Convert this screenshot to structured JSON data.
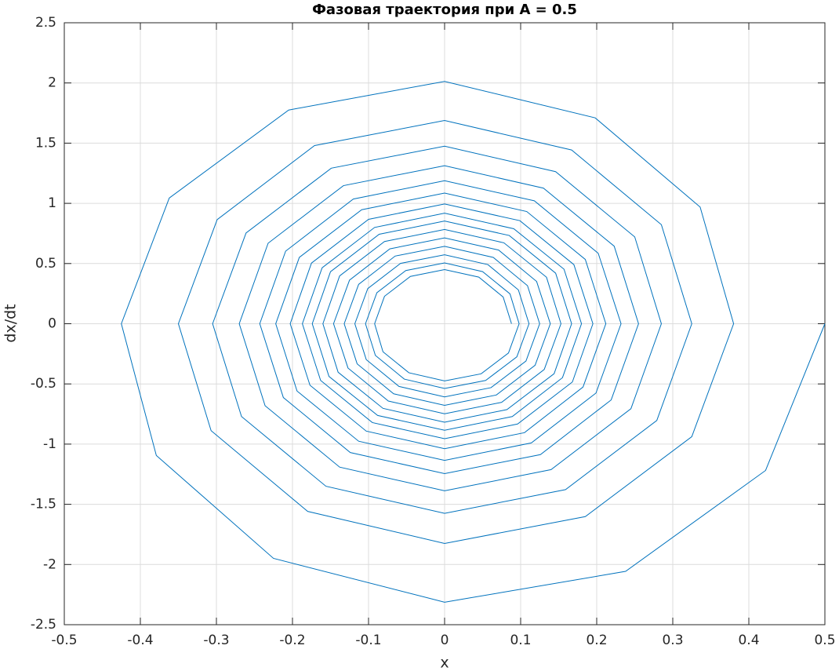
{
  "chart_data": {
    "type": "line",
    "title": "Фазовая траектория при A = 0.5",
    "xlabel": "x",
    "ylabel": "dx/dt",
    "color": "#0072bd",
    "grid": true,
    "xlim": [
      -0.5,
      0.5
    ],
    "xticks": [
      -0.5,
      -0.4,
      -0.3,
      -0.2,
      -0.1,
      0,
      0.1,
      0.2,
      0.3,
      0.4,
      0.5
    ],
    "ylim": [
      -2.5,
      2.5
    ],
    "yticks": [
      -2.5,
      -2,
      -1.5,
      -1,
      -0.5,
      0,
      0.5,
      1,
      1.5,
      2,
      2.5
    ],
    "x": [
      0.5,
      0.422,
      0.238,
      0,
      -0.225,
      -0.379,
      -0.425,
      -0.362,
      -0.205,
      0,
      0.198,
      0.336,
      0.38,
      0.325,
      0.185,
      0,
      -0.18,
      -0.307,
      -0.35,
      -0.299,
      -0.171,
      0,
      0.167,
      0.285,
      0.325,
      0.279,
      0.159,
      0,
      -0.156,
      -0.267,
      -0.305,
      -0.261,
      -0.149,
      0,
      0.146,
      0.25,
      0.285,
      0.245,
      0.14,
      0,
      -0.138,
      -0.236,
      -0.27,
      -0.232,
      -0.133,
      0,
      0.13,
      0.223,
      0.255,
      0.219,
      0.126,
      0,
      -0.124,
      -0.212,
      -0.243,
      -0.209,
      -0.12,
      0,
      0.118,
      0.202,
      0.232,
      0.199,
      0.114,
      0,
      -0.113,
      -0.194,
      -0.222,
      -0.191,
      -0.109,
      0,
      0.108,
      0.185,
      0.212,
      0.182,
      0.105,
      0,
      -0.103,
      -0.177,
      -0.203,
      -0.175,
      -0.1,
      0,
      0.099,
      0.17,
      0.195,
      0.168,
      0.096,
      0,
      -0.095,
      -0.163,
      -0.187,
      -0.161,
      -0.092,
      0,
      0.091,
      0.157,
      0.18,
      0.155,
      0.089,
      0,
      -0.088,
      -0.152,
      -0.174,
      -0.15,
      -0.086,
      0,
      0.085,
      0.146,
      0.167,
      0.144,
      0.082,
      0,
      -0.081,
      -0.14,
      -0.16,
      -0.138,
      -0.079,
      0,
      0.078,
      0.134,
      0.153,
      0.131,
      0.075,
      0,
      -0.074,
      -0.127,
      -0.146,
      -0.125,
      -0.072,
      0,
      0.071,
      0.121,
      0.139,
      0.119,
      0.068,
      0,
      -0.067,
      -0.115,
      -0.132,
      -0.113,
      -0.065,
      0,
      0.064,
      0.109,
      0.125,
      0.107,
      0.061,
      0,
      -0.06,
      -0.103,
      -0.118,
      -0.101,
      -0.058,
      0,
      0.057,
      0.097,
      0.111,
      0.095,
      0.054,
      0,
      -0.053,
      -0.091,
      -0.104,
      -0.089,
      -0.051,
      0,
      0.05,
      0.086,
      0.098,
      0.084,
      0.048,
      0,
      -0.047,
      -0.081,
      -0.092,
      -0.079,
      -0.045,
      0,
      0.045,
      0.077,
      0.088
    ],
    "values": [
      0,
      -1.219,
      -2.057,
      -2.313,
      -1.949,
      -1.094,
      0,
      1.044,
      1.775,
      2.013,
      1.71,
      0.969,
      0,
      -0.938,
      -1.602,
      -1.825,
      -1.559,
      -0.888,
      0,
      0.865,
      1.48,
      1.688,
      1.443,
      0.823,
      0,
      -0.804,
      -1.378,
      -1.575,
      -1.35,
      -0.771,
      0,
      0.754,
      1.292,
      1.475,
      1.263,
      0.721,
      0,
      -0.706,
      -1.212,
      -1.388,
      -1.191,
      -0.681,
      0,
      0.669,
      1.147,
      1.313,
      1.126,
      0.644,
      0,
      -0.633,
      -1.087,
      -1.245,
      -1.07,
      -0.613,
      0,
      0.603,
      1.036,
      1.188,
      1.021,
      0.585,
      0,
      -0.576,
      -0.99,
      -1.135,
      -0.976,
      -0.559,
      0,
      0.551,
      0.947,
      1.085,
      0.932,
      0.534,
      0,
      -0.526,
      -0.905,
      -1.038,
      -0.892,
      -0.511,
      0,
      0.504,
      0.867,
      0.995,
      0.856,
      0.491,
      0,
      -0.484,
      -0.833,
      -0.955,
      -0.821,
      -0.471,
      0,
      0.465,
      0.8,
      0.918,
      0.789,
      0.453,
      0,
      -0.448,
      -0.771,
      -0.885,
      -0.762,
      -0.438,
      0,
      0.432,
      0.743,
      0.853,
      0.733,
      0.42,
      0,
      -0.415,
      -0.713,
      -0.818,
      -0.703,
      -0.403,
      0,
      0.397,
      0.683,
      0.783,
      0.672,
      0.386,
      0,
      -0.38,
      -0.653,
      -0.748,
      -0.642,
      -0.368,
      0,
      0.362,
      0.622,
      0.713,
      0.612,
      0.351,
      0,
      -0.345,
      -0.592,
      -0.678,
      -0.582,
      -0.333,
      0,
      0.327,
      0.562,
      0.643,
      0.551,
      0.316,
      0,
      -0.31,
      -0.531,
      -0.608,
      -0.521,
      -0.298,
      0,
      0.292,
      0.501,
      0.573,
      0.491,
      0.281,
      0,
      -0.275,
      -0.471,
      -0.538,
      -0.46,
      -0.263,
      0,
      0.258,
      0.442,
      0.505,
      0.433,
      0.248,
      0,
      -0.243,
      -0.416,
      -0.475,
      -0.407,
      -0.233,
      0,
      0.228,
      0.393,
      0.45,
      0.387,
      0.222,
      0
    ]
  }
}
